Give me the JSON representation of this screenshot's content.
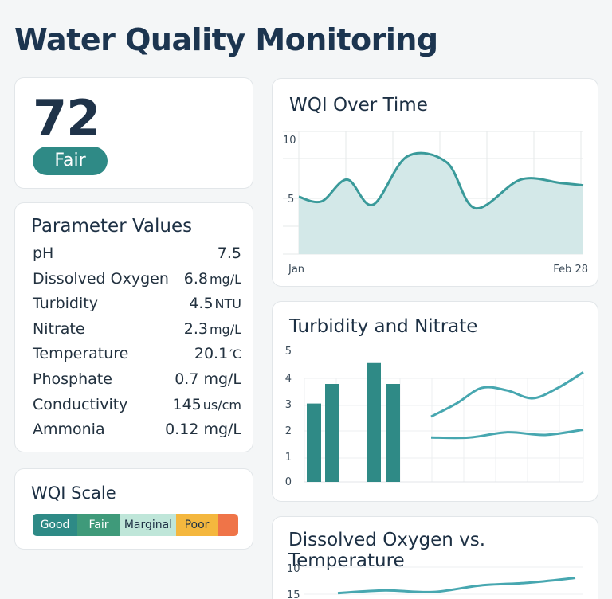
{
  "page": {
    "title": "Water Quality Monitoring"
  },
  "score": {
    "value": "72",
    "label": "Fair",
    "label_color": "#2f8a86"
  },
  "parameters": {
    "title": "Parameter Values",
    "rows": [
      {
        "name": "pH",
        "value": "7.5",
        "unit": ""
      },
      {
        "name": "Dissolved Oxygen",
        "value": "6.8",
        "unit": "mg/L"
      },
      {
        "name": "Turbidity",
        "value": "4.5",
        "unit": "NTU"
      },
      {
        "name": "Nitrate",
        "value": "2.3",
        "unit": "mg/L"
      },
      {
        "name": "Temperature",
        "value": "20.1",
        "unit": "′C"
      },
      {
        "name": "Phosphate",
        "value": "0.7 mg/L",
        "unit": ""
      },
      {
        "name": "Conductivity",
        "value": "145",
        "unit": "us/cm"
      },
      {
        "name": "Ammonia",
        "value": "0.12 mg/L",
        "unit": ""
      }
    ]
  },
  "scale": {
    "title": "WQI Scale",
    "segments": [
      {
        "label": "Good",
        "color": "#2e8a86",
        "text_color": "#ffffff"
      },
      {
        "label": "Fair",
        "color": "#3f9a7a",
        "text_color": "#ffffff"
      },
      {
        "label": "Marginal",
        "color": "#bfe6d9",
        "text_color": "#1d3044"
      },
      {
        "label": "Poor",
        "color": "#f4b73e",
        "text_color": "#1d3044"
      },
      {
        "label": "",
        "color": "#ef7448",
        "text_color": "#ffffff"
      }
    ]
  },
  "chart_data": [
    {
      "type": "area",
      "title": "WQI Over Time",
      "x_labels": [
        "Jan",
        "Feb 28"
      ],
      "yticks": [
        "10",
        "5"
      ],
      "ylim": [
        0,
        10
      ],
      "x": [
        0,
        0.08,
        0.17,
        0.26,
        0.38,
        0.52,
        0.62,
        0.78,
        0.92,
        1.0
      ],
      "values": [
        5.0,
        4.6,
        6.5,
        4.3,
        8.5,
        8.0,
        4.0,
        6.5,
        6.2,
        6.0
      ],
      "colors": {
        "line": "#3a9a9a",
        "fill": "#d3e8e8"
      }
    },
    {
      "type": "bar",
      "title": "Turbidity and Nitrate",
      "yticks": [
        "5",
        "4",
        "3",
        "2",
        "1",
        "0"
      ],
      "ylim": [
        0,
        5
      ],
      "bars": [
        3.0,
        3.75,
        4.55,
        3.75
      ],
      "colors": {
        "bar": "#2f8a86",
        "line": "#47a7b0"
      },
      "series": [
        {
          "values": [
            2.5,
            3.0,
            3.6,
            3.5,
            3.2,
            3.6,
            4.2
          ]
        },
        {
          "values": [
            1.7,
            1.7,
            1.9,
            1.8,
            2.0
          ]
        }
      ]
    },
    {
      "type": "line",
      "title": "Dissolved Oxygen vs. Temperature",
      "yticks": [
        "10",
        "15"
      ],
      "series": [
        {
          "values": [
            14.8,
            14.3,
            14.6,
            13.4,
            12.9,
            12.0
          ]
        }
      ],
      "colors": {
        "line": "#47a7b0"
      }
    }
  ]
}
